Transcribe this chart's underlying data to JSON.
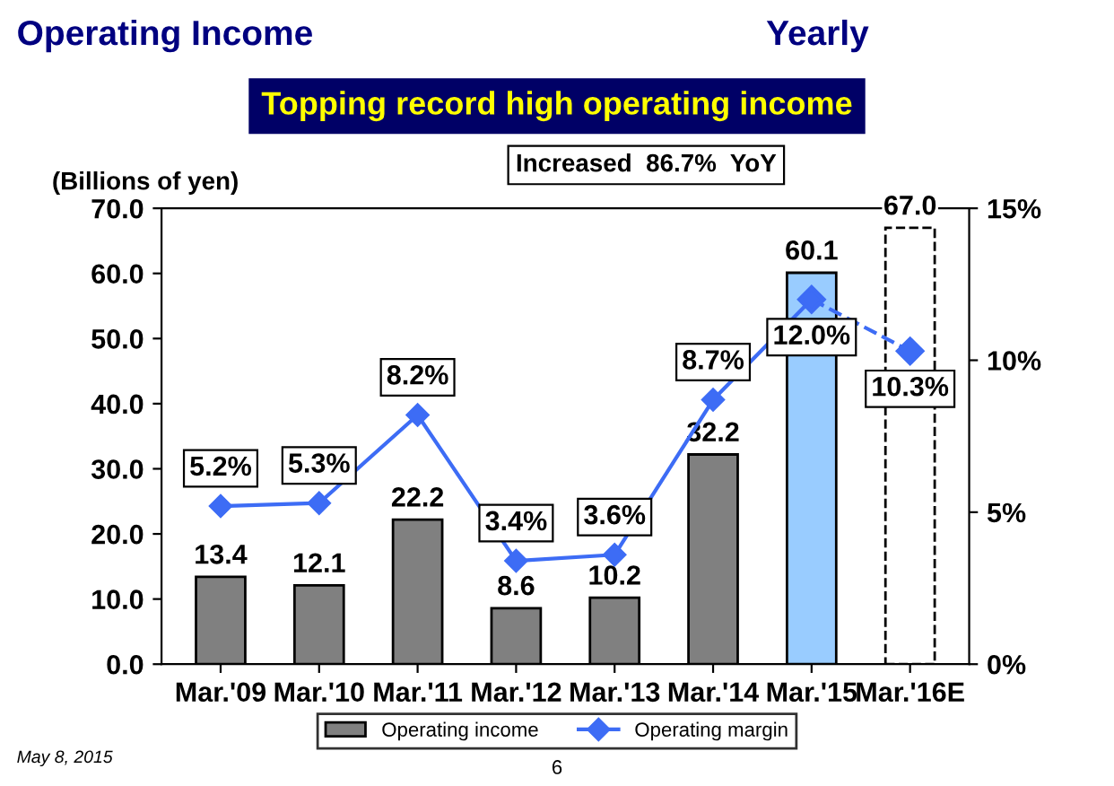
{
  "chart_data": {
    "type": "bar",
    "title": "Operating Income",
    "subtitle": "Topping record high operating income",
    "ylabel": "(Billions of yen)",
    "categories": [
      "Mar.'09",
      "Mar.'10",
      "Mar.'11",
      "Mar.'12",
      "Mar.'13",
      "Mar.'14",
      "Mar.'15",
      "Mar.'16E"
    ],
    "series": [
      {
        "name": "Operating income",
        "color": "#808080",
        "colors": [
          "#808080",
          "#808080",
          "#808080",
          "#808080",
          "#808080",
          "#808080",
          "#99ccff",
          "#808080"
        ],
        "values": [
          13.4,
          12.1,
          22.2,
          8.6,
          10.2,
          32.2,
          60.1,
          null
        ],
        "value_labels": [
          "13.4",
          "12.1",
          "22.2",
          "8.6",
          "10.2",
          "32.2",
          "60.1",
          null
        ]
      },
      {
        "color": "#ffffff",
        "line_style": "dashed",
        "values": [
          null,
          null,
          null,
          null,
          null,
          null,
          null,
          67.0
        ],
        "value_labels": [
          null,
          null,
          null,
          null,
          null,
          null,
          null,
          "67.0"
        ]
      },
      {
        "name": "Operating margin",
        "type": "line",
        "axis": "y2",
        "color": "#3d6cf5",
        "marker": "diamond",
        "line_style": "solid",
        "values": [
          5.2,
          5.3,
          8.2,
          3.4,
          3.6,
          8.7,
          12.0,
          null
        ],
        "value_labels": [
          "5.2%",
          "5.3%",
          "8.2%",
          "3.4%",
          "3.6%",
          "8.7%",
          "12.0%",
          null
        ]
      },
      {
        "type": "line",
        "axis": "y2",
        "color": "#3d6cf5",
        "marker": "diamond",
        "line_style": "dashed",
        "values": [
          null,
          null,
          null,
          null,
          null,
          null,
          12.0,
          10.3
        ],
        "value_labels": [
          null,
          null,
          null,
          null,
          null,
          null,
          null,
          "10.3%"
        ]
      }
    ],
    "ylim": [
      0,
      70
    ],
    "yticks": [
      {
        "value": 0,
        "label": "0.0"
      },
      {
        "value": 10,
        "label": "10.0"
      },
      {
        "value": 20,
        "label": "20.0"
      },
      {
        "value": 30,
        "label": "30.0"
      },
      {
        "value": 40,
        "label": "40.0"
      },
      {
        "value": 50,
        "label": "50.0"
      },
      {
        "value": 60,
        "label": "60.0"
      },
      {
        "value": 70,
        "label": "70.0"
      }
    ],
    "y2lim": [
      0,
      15
    ],
    "y2ticks": [
      {
        "value": 0,
        "label": "0%"
      },
      {
        "value": 5,
        "label": "5%"
      },
      {
        "value": 10,
        "label": "10%"
      },
      {
        "value": 15,
        "label": "15%"
      }
    ],
    "annotations": [
      "Yearly",
      "Increased  86.7%  YoY",
      "May 8, 2015",
      "6"
    ],
    "grid": false,
    "legend": "bottom"
  }
}
